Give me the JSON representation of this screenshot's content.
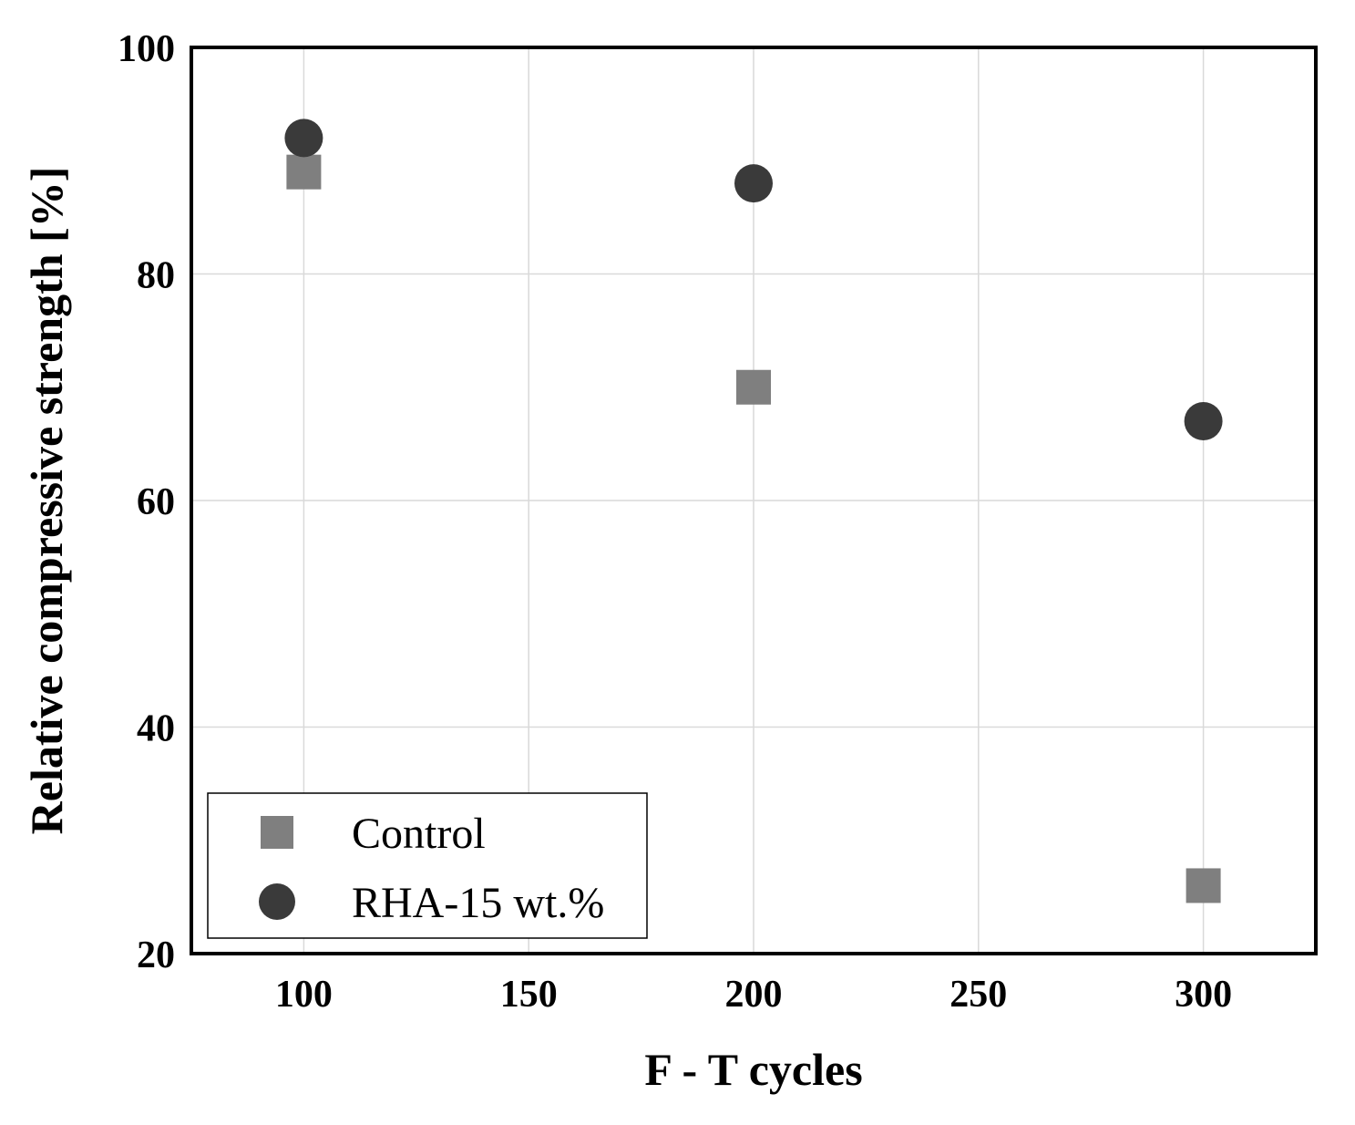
{
  "chart_data": {
    "type": "scatter",
    "title": "",
    "xlabel": "F - T cycles",
    "ylabel": "Relative compressive strength [%]",
    "xlim": [
      75,
      325
    ],
    "ylim": [
      20,
      100
    ],
    "xticks": [
      100,
      150,
      200,
      250,
      300
    ],
    "yticks": [
      20,
      40,
      60,
      80,
      100
    ],
    "grid": true,
    "legend_position": "bottom-left",
    "series": [
      {
        "name": "Control",
        "marker": "square",
        "color": "#7f7f7f",
        "x": [
          100,
          200,
          300
        ],
        "y": [
          89,
          70,
          26
        ]
      },
      {
        "name": "RHA-15 wt.%",
        "marker": "circle",
        "color": "#3a3a3a",
        "x": [
          100,
          200,
          300
        ],
        "y": [
          92,
          88,
          67
        ]
      }
    ]
  }
}
